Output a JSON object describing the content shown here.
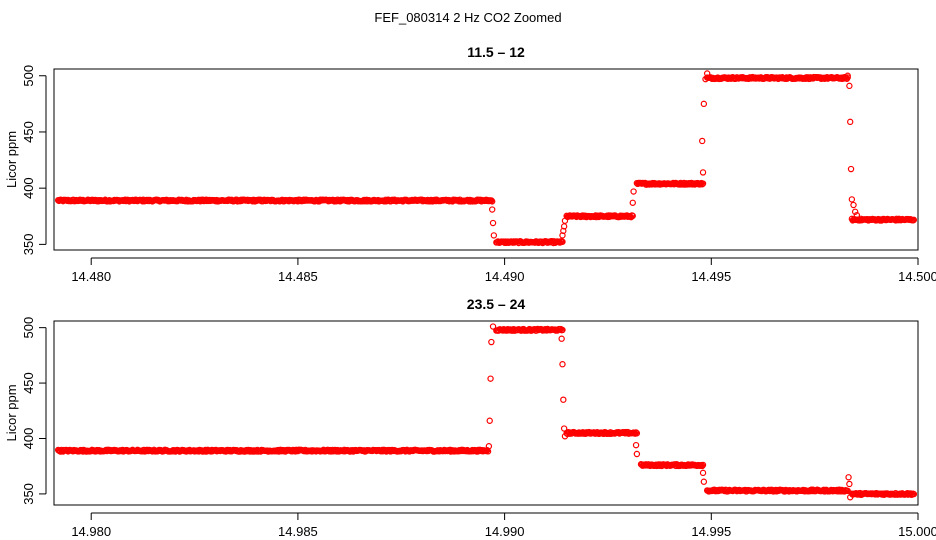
{
  "figure": {
    "title": "FEF_080314  2 Hz CO2 Zoomed"
  },
  "colors": {
    "points": "#ff0000",
    "axes": "#000000"
  },
  "chart_data": [
    {
      "type": "scatter",
      "title": "11.5 – 12",
      "xlabel": "",
      "ylabel": "Licor ppm",
      "xlim": [
        14.4791,
        14.5
      ],
      "ylim": [
        345,
        506
      ],
      "x_ticks": [
        14.48,
        14.485,
        14.49,
        14.495,
        14.5
      ],
      "x_tick_labels": [
        "14.480",
        "14.485",
        "14.490",
        "14.495",
        "14.500"
      ],
      "y_ticks": [
        350,
        400,
        450,
        500
      ],
      "y_tick_labels": [
        "350",
        "400",
        "450",
        "500"
      ],
      "segments": [
        {
          "x_start": 14.4792,
          "x_end": 14.4897,
          "y": 389
        },
        {
          "x_start": 14.4898,
          "x_end": 14.4914,
          "y": 352
        },
        {
          "x_start": 14.4915,
          "x_end": 14.4931,
          "y": 375
        },
        {
          "x_start": 14.4932,
          "x_end": 14.4948,
          "y": 404
        },
        {
          "x_start": 14.4949,
          "x_end": 14.4983,
          "y": 498
        },
        {
          "x_start": 14.4984,
          "x_end": 14.4999,
          "y": 372
        }
      ],
      "transition_points": [
        {
          "x": 14.4897,
          "y": 381
        },
        {
          "x": 14.48972,
          "y": 369
        },
        {
          "x": 14.48974,
          "y": 358
        },
        {
          "x": 14.4914,
          "y": 358
        },
        {
          "x": 14.49142,
          "y": 362
        },
        {
          "x": 14.49144,
          "y": 366
        },
        {
          "x": 14.49146,
          "y": 371
        },
        {
          "x": 14.4931,
          "y": 387
        },
        {
          "x": 14.49312,
          "y": 397
        },
        {
          "x": 14.4948,
          "y": 414
        },
        {
          "x": 14.49478,
          "y": 442
        },
        {
          "x": 14.49482,
          "y": 475
        },
        {
          "x": 14.49486,
          "y": 497
        },
        {
          "x": 14.4949,
          "y": 502
        },
        {
          "x": 14.4983,
          "y": 500
        },
        {
          "x": 14.49834,
          "y": 491
        },
        {
          "x": 14.49836,
          "y": 459
        },
        {
          "x": 14.49838,
          "y": 417
        },
        {
          "x": 14.4984,
          "y": 390
        },
        {
          "x": 14.49844,
          "y": 385
        },
        {
          "x": 14.49848,
          "y": 379
        },
        {
          "x": 14.49852,
          "y": 376
        }
      ]
    },
    {
      "type": "scatter",
      "title": "23.5 – 24",
      "xlabel": "",
      "ylabel": "Licor ppm",
      "xlim": [
        14.9791,
        15.0
      ],
      "ylim": [
        340,
        506
      ],
      "x_ticks": [
        14.98,
        14.985,
        14.99,
        14.995,
        15.0
      ],
      "x_tick_labels": [
        "14.980",
        "14.985",
        "14.990",
        "14.995",
        "15.000"
      ],
      "y_ticks": [
        350,
        400,
        450,
        500
      ],
      "y_tick_labels": [
        "350",
        "400",
        "450",
        "500"
      ],
      "segments": [
        {
          "x_start": 14.9792,
          "x_end": 14.9896,
          "y": 389
        },
        {
          "x_start": 14.9898,
          "x_end": 14.9914,
          "y": 498
        },
        {
          "x_start": 14.9915,
          "x_end": 14.9932,
          "y": 405
        },
        {
          "x_start": 14.9933,
          "x_end": 14.9948,
          "y": 376
        },
        {
          "x_start": 14.9949,
          "x_end": 14.9983,
          "y": 353
        },
        {
          "x_start": 14.9984,
          "x_end": 14.9999,
          "y": 350
        }
      ],
      "transition_points": [
        {
          "x": 14.98962,
          "y": 393
        },
        {
          "x": 14.98964,
          "y": 416
        },
        {
          "x": 14.98966,
          "y": 454
        },
        {
          "x": 14.98968,
          "y": 487
        },
        {
          "x": 14.98972,
          "y": 501
        },
        {
          "x": 14.99138,
          "y": 490
        },
        {
          "x": 14.9914,
          "y": 467
        },
        {
          "x": 14.99142,
          "y": 435
        },
        {
          "x": 14.99144,
          "y": 409
        },
        {
          "x": 14.99146,
          "y": 402
        },
        {
          "x": 14.99318,
          "y": 394
        },
        {
          "x": 14.9932,
          "y": 386
        },
        {
          "x": 14.9948,
          "y": 369
        },
        {
          "x": 14.99482,
          "y": 361
        },
        {
          "x": 14.99832,
          "y": 365
        },
        {
          "x": 14.99834,
          "y": 359
        },
        {
          "x": 14.99836,
          "y": 347
        }
      ]
    }
  ]
}
